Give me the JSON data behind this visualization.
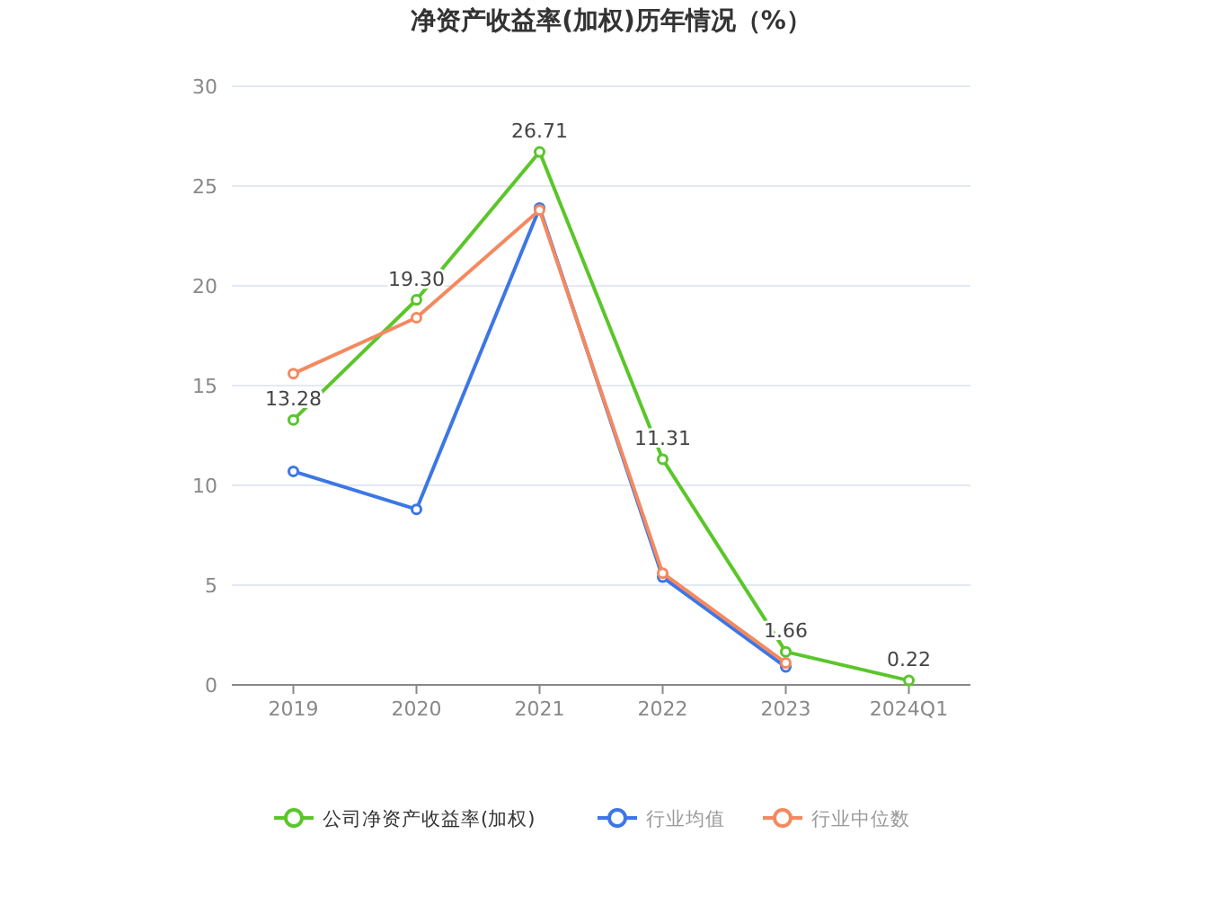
{
  "chart_data": {
    "type": "line",
    "title": "净资产收益率(加权)历年情况（%）",
    "categories": [
      "2019",
      "2020",
      "2021",
      "2022",
      "2023",
      "2024Q1"
    ],
    "series": [
      {
        "name": "公司净资产收益率(加权)",
        "color": "#5ac62a",
        "values": [
          13.28,
          19.3,
          26.71,
          11.31,
          1.66,
          0.22
        ],
        "value_labels": [
          "13.28",
          "19.30",
          "26.71",
          "11.31",
          "1.66",
          "0.22"
        ]
      },
      {
        "name": "行业均值",
        "color": "#3d76e6",
        "values": [
          10.7,
          8.8,
          23.9,
          5.4,
          0.9,
          null
        ]
      },
      {
        "name": "行业中位数",
        "color": "#f4895f",
        "values": [
          15.6,
          18.4,
          23.8,
          5.6,
          1.1,
          null
        ]
      }
    ],
    "ylim": [
      0,
      30
    ],
    "yticks": [
      0,
      5,
      10,
      15,
      20,
      25,
      30
    ],
    "grid": "y",
    "legend": "bottom",
    "marker": "circle",
    "line_style": "solid"
  }
}
